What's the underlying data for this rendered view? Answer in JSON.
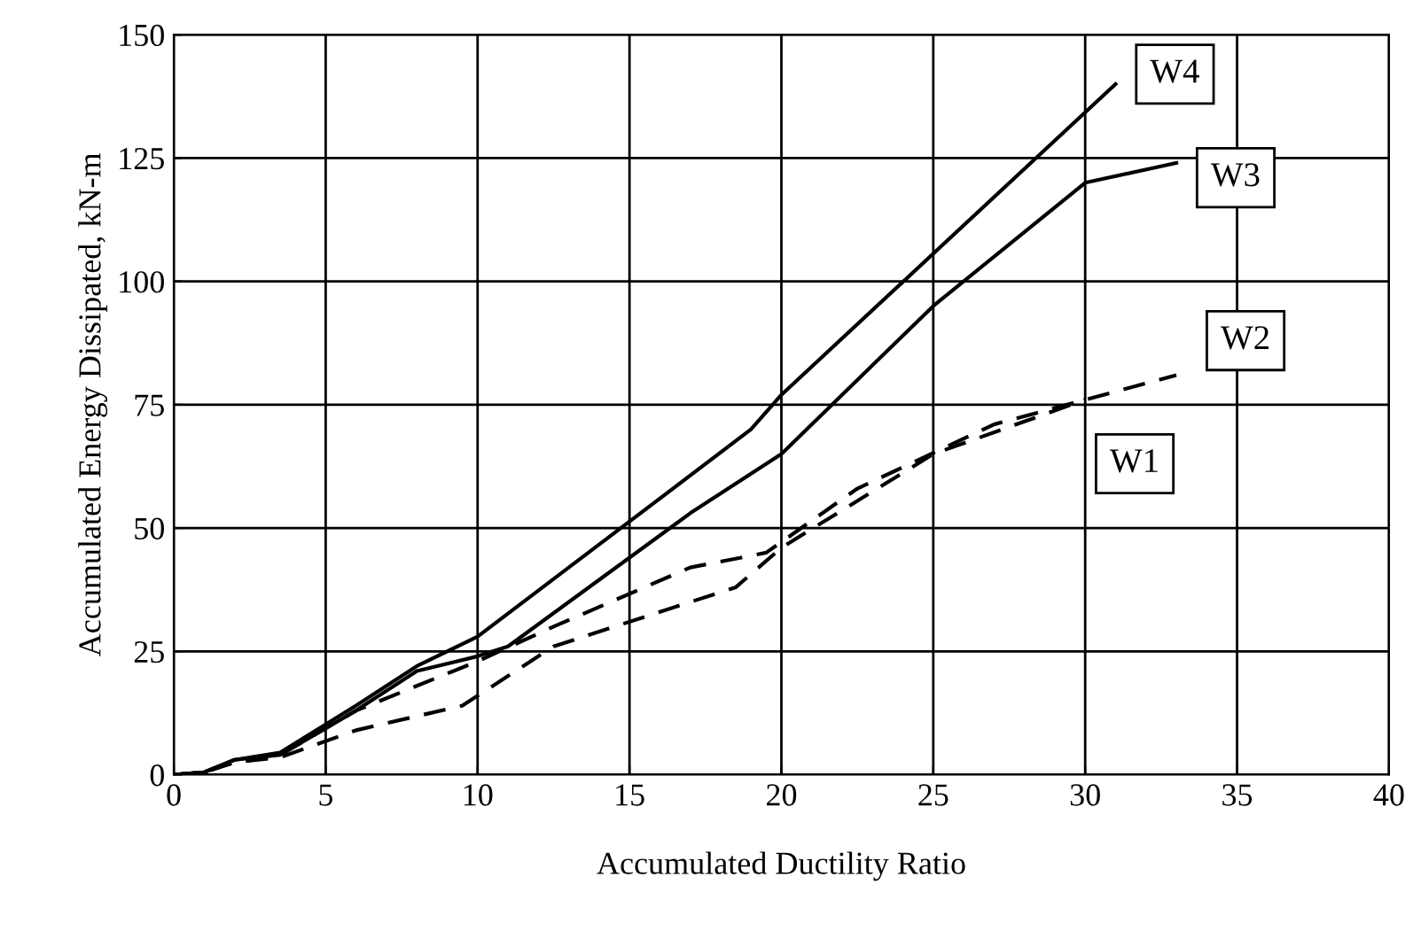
{
  "chart_data": {
    "type": "line",
    "xlabel": "Accumulated Ductility Ratio",
    "ylabel": "Accumulated Energy Dissipated, kN-m",
    "xlim": [
      0,
      40
    ],
    "xticks": [
      0,
      5,
      10,
      15,
      20,
      25,
      30,
      35,
      40
    ],
    "ylim": [
      0,
      150
    ],
    "yticks": [
      0,
      25,
      50,
      75,
      100,
      125,
      150
    ],
    "grid": true,
    "legend": false,
    "marker": "none",
    "series": [
      {
        "name": "W4",
        "color": "#000000",
        "line_style": "solid",
        "x": [
          0,
          1,
          2,
          3.5,
          6,
          8,
          10,
          13,
          19,
          20,
          31
        ],
        "values": [
          0,
          0.5,
          3,
          4.5,
          14,
          22,
          28,
          42,
          70,
          77,
          140
        ]
      },
      {
        "name": "W3",
        "color": "#000000",
        "line_style": "solid",
        "x": [
          0,
          1,
          2,
          3.5,
          6,
          8,
          10,
          11,
          17,
          20,
          25,
          30,
          33
        ],
        "values": [
          0,
          0.5,
          3,
          4,
          13,
          21,
          24,
          26,
          53,
          65,
          95,
          120,
          124
        ]
      },
      {
        "name": "W2",
        "color": "#000000",
        "line_style": "dashed",
        "x": [
          0,
          1,
          2,
          3.5,
          6,
          10,
          12.5,
          17,
          19.5,
          22.5,
          27,
          30,
          33
        ],
        "values": [
          0,
          0.5,
          2.5,
          4,
          13,
          23,
          30,
          42,
          45,
          58,
          71,
          76,
          81
        ]
      },
      {
        "name": "W1",
        "color": "#000000",
        "line_style": "dashed",
        "x": [
          0,
          1,
          2,
          3.5,
          6,
          9.5,
          12.5,
          18.5,
          20,
          25,
          30
        ],
        "values": [
          0,
          0.5,
          2.5,
          3.5,
          9,
          14,
          26,
          38,
          46,
          65,
          76
        ]
      }
    ]
  }
}
